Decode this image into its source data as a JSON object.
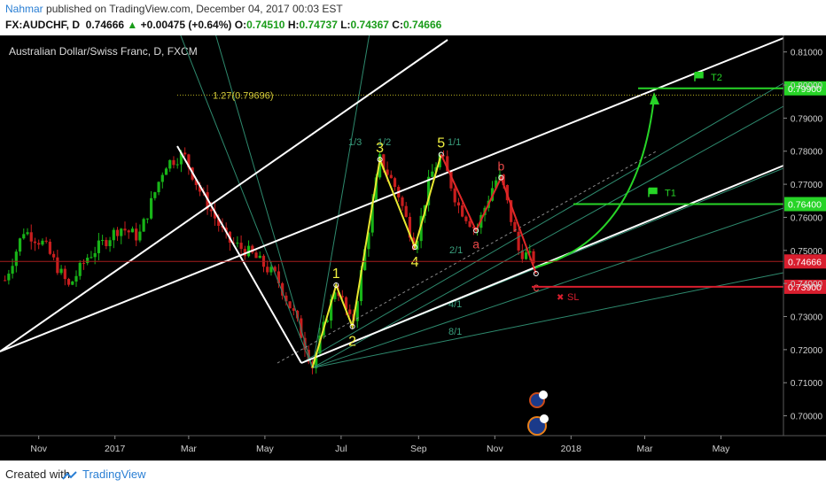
{
  "header": {
    "author": "Nahmar",
    "published_text": "published on TradingView.com, December 04, 2017 00:03 EST",
    "symbol": "FX:AUDCHF, D",
    "last": "0.74666",
    "change_arrow": "▲",
    "change": "+0.00475 (+0.64%)",
    "o_label": "O:",
    "o": "0.74510",
    "h_label": "H:",
    "h": "0.74737",
    "l_label": "L:",
    "l": "0.74367",
    "c_label": "C:",
    "c": "0.74666"
  },
  "chart_title": "Australian Dollar/Swiss Franc, D, FXCM",
  "footer": {
    "created_with": "Created with",
    "brand": "TradingView"
  },
  "chart_data": {
    "type": "line",
    "title": "Australian Dollar/Swiss Franc, D, FXCM",
    "xlabel": "",
    "ylabel": "",
    "x_ticks": [
      "Nov",
      "2017",
      "Mar",
      "May",
      "Jul",
      "Sep",
      "Nov",
      "2018",
      "Mar",
      "May"
    ],
    "y_ticks": [
      "0.81000",
      "0.80000",
      "0.79000",
      "0.78000",
      "0.77000",
      "0.76000",
      "0.75000",
      "0.74000",
      "0.73000",
      "0.72000",
      "0.71000",
      "0.70000"
    ],
    "ylim": [
      0.694,
      0.815
    ],
    "x_domain": [
      "2016-10-01",
      "2018-06-20"
    ],
    "price_path": [
      {
        "x": "2016-10-05",
        "y": 0.741
      },
      {
        "x": "2016-10-20",
        "y": 0.756
      },
      {
        "x": "2016-11-05",
        "y": 0.752
      },
      {
        "x": "2016-11-25",
        "y": 0.739
      },
      {
        "x": "2016-12-10",
        "y": 0.748
      },
      {
        "x": "2017-01-05",
        "y": 0.757
      },
      {
        "x": "2017-01-20",
        "y": 0.754
      },
      {
        "x": "2017-02-10",
        "y": 0.776
      },
      {
        "x": "2017-02-25",
        "y": 0.779
      },
      {
        "x": "2017-03-10",
        "y": 0.768
      },
      {
        "x": "2017-04-01",
        "y": 0.753
      },
      {
        "x": "2017-04-20",
        "y": 0.749
      },
      {
        "x": "2017-05-10",
        "y": 0.742
      },
      {
        "x": "2017-05-25",
        "y": 0.73
      },
      {
        "x": "2017-06-08",
        "y": 0.715
      },
      {
        "x": "2017-06-27",
        "y": 0.7395
      },
      {
        "x": "2017-07-10",
        "y": 0.727
      },
      {
        "x": "2017-08-01",
        "y": 0.7775
      },
      {
        "x": "2017-08-15",
        "y": 0.768
      },
      {
        "x": "2017-08-29",
        "y": 0.751
      },
      {
        "x": "2017-09-10",
        "y": 0.772
      },
      {
        "x": "2017-09-19",
        "y": 0.779
      },
      {
        "x": "2017-10-02",
        "y": 0.764
      },
      {
        "x": "2017-10-17",
        "y": 0.756
      },
      {
        "x": "2017-11-01",
        "y": 0.771
      },
      {
        "x": "2017-11-06",
        "y": 0.772
      },
      {
        "x": "2017-11-20",
        "y": 0.75
      },
      {
        "x": "2017-12-04",
        "y": 0.7467
      }
    ],
    "elliott_impulse": [
      {
        "label": "1",
        "x": "2017-06-27",
        "y": 0.7395
      },
      {
        "label": "2",
        "x": "2017-07-10",
        "y": 0.727
      },
      {
        "label": "3",
        "x": "2017-08-01",
        "y": 0.7775
      },
      {
        "label": "4",
        "x": "2017-08-29",
        "y": 0.751
      },
      {
        "label": "5",
        "x": "2017-09-19",
        "y": 0.779
      }
    ],
    "elliott_correction": [
      {
        "label": "a",
        "x": "2017-10-17",
        "y": 0.756
      },
      {
        "label": "b",
        "x": "2017-11-06",
        "y": 0.772
      },
      {
        "label": "c",
        "x": "2017-12-04",
        "y": 0.743
      }
    ],
    "gann_fan": {
      "origin": {
        "x": "2017-06-08",
        "y": 0.7145
      },
      "labels": [
        "1/3",
        "1/2",
        "1/1",
        "2/1",
        "4/1",
        "8/1"
      ]
    },
    "fibonacci": {
      "label": "1.27(0.79696)",
      "y": 0.79696
    },
    "levels": [
      {
        "label": "T2",
        "y": 0.799,
        "tag": "0.79900",
        "color": "#27d427"
      },
      {
        "label": "T1",
        "y": 0.764,
        "tag": "0.76400",
        "color": "#27d427"
      },
      {
        "label": "SL",
        "y": 0.739,
        "tag": "0.73900",
        "color": "#d81e2e"
      }
    ],
    "current_price": {
      "y": 0.74666,
      "tag": "0.74666",
      "color": "#d81e2e"
    },
    "grid": false
  }
}
